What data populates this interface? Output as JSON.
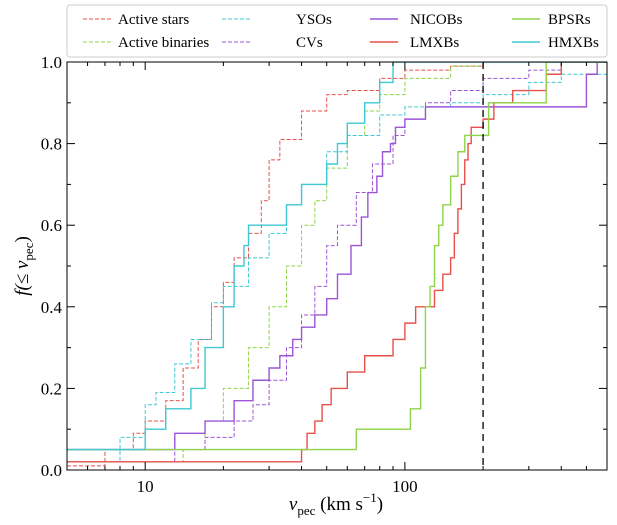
{
  "chart_data": {
    "type": "step-cdf",
    "xlabel": [
      "v",
      "pec",
      " (km s",
      "−1",
      ")"
    ],
    "ylabel": [
      "f(≤ ",
      "v",
      "pec",
      ")"
    ],
    "xscale": "log",
    "xlim": [
      5,
      600
    ],
    "xticks": [
      10,
      100
    ],
    "ylim": [
      0,
      1
    ],
    "yticks": [
      0.0,
      0.2,
      0.4,
      0.6,
      0.8,
      1.0
    ],
    "ytick_labels": [
      "0.0",
      "0.2",
      "0.4",
      "0.6",
      "0.8",
      "1.0"
    ],
    "vline": 200,
    "legend": "top",
    "series": [
      {
        "name": "Active stars",
        "color": "#e8504a",
        "linestyle": "dashed",
        "x": [
          5,
          7,
          9,
          10,
          12,
          14,
          16,
          18,
          20,
          22,
          25,
          28,
          30,
          33,
          40,
          50,
          60,
          80,
          100,
          150,
          200
        ],
        "values": [
          0.01,
          0.05,
          0.09,
          0.12,
          0.17,
          0.25,
          0.32,
          0.4,
          0.46,
          0.52,
          0.58,
          0.66,
          0.76,
          0.81,
          0.88,
          0.92,
          0.93,
          0.96,
          0.98,
          0.99,
          1.0
        ]
      },
      {
        "name": "Active binaries",
        "color": "#8ed44a",
        "linestyle": "dashed",
        "x": [
          12,
          14,
          17,
          20,
          25,
          30,
          35,
          40,
          45,
          50,
          60,
          70,
          80,
          100,
          150,
          200
        ],
        "values": [
          0.02,
          0.05,
          0.12,
          0.2,
          0.3,
          0.4,
          0.5,
          0.6,
          0.66,
          0.74,
          0.82,
          0.88,
          0.92,
          0.96,
          0.99,
          1.0
        ]
      },
      {
        "name": "YSOs",
        "color": "#3fc8d4",
        "linestyle": "dashed",
        "x": [
          5,
          8,
          10,
          11,
          13,
          15,
          18,
          20,
          25,
          30,
          35,
          40,
          50,
          60,
          80,
          100,
          150,
          200,
          300,
          400,
          600
        ],
        "values": [
          0.02,
          0.08,
          0.16,
          0.19,
          0.26,
          0.32,
          0.41,
          0.45,
          0.52,
          0.58,
          0.65,
          0.7,
          0.78,
          0.82,
          0.87,
          0.89,
          0.9,
          0.92,
          0.95,
          0.97,
          0.99
        ]
      },
      {
        "name": "CVs",
        "color": "#9a55d6",
        "linestyle": "dashed",
        "x": [
          9,
          13,
          17,
          22,
          26,
          30,
          35,
          40,
          45,
          50,
          55,
          65,
          75,
          90,
          100,
          120,
          150,
          200,
          300,
          400
        ],
        "values": [
          0.02,
          0.05,
          0.08,
          0.12,
          0.16,
          0.22,
          0.3,
          0.38,
          0.45,
          0.55,
          0.6,
          0.68,
          0.75,
          0.82,
          0.86,
          0.9,
          0.93,
          0.96,
          0.98,
          1.0
        ]
      },
      {
        "name": "NICOBs",
        "color": "#9a55d6",
        "linestyle": "solid",
        "x": [
          12,
          13,
          17,
          22,
          26,
          30,
          33,
          37,
          40,
          45,
          50,
          55,
          62,
          68,
          72,
          78,
          82,
          88,
          92,
          100,
          120,
          300,
          500,
          550
        ],
        "values": [
          0.05,
          0.09,
          0.12,
          0.17,
          0.22,
          0.25,
          0.28,
          0.32,
          0.35,
          0.38,
          0.42,
          0.48,
          0.55,
          0.62,
          0.68,
          0.72,
          0.78,
          0.8,
          0.84,
          0.86,
          0.89,
          0.89,
          0.97,
          1.0
        ]
      },
      {
        "name": "LMXBs",
        "color": "#e8504a",
        "linestyle": "solid",
        "x": [
          37,
          40,
          42,
          45,
          48,
          52,
          60,
          70,
          90,
          100,
          110,
          130,
          140,
          150,
          155,
          160,
          165,
          170,
          175,
          180,
          200,
          220,
          260,
          350,
          400
        ],
        "values": [
          0.02,
          0.05,
          0.09,
          0.12,
          0.16,
          0.2,
          0.24,
          0.28,
          0.32,
          0.36,
          0.4,
          0.44,
          0.48,
          0.52,
          0.58,
          0.64,
          0.7,
          0.76,
          0.8,
          0.84,
          0.86,
          0.9,
          0.93,
          0.97,
          1.0
        ]
      },
      {
        "name": "BPSRs",
        "color": "#8ed44a",
        "linestyle": "solid",
        "x": [
          25,
          62,
          65,
          100,
          105,
          115,
          120,
          125,
          130,
          135,
          140,
          150,
          160,
          170,
          200,
          210,
          300,
          350
        ],
        "values": [
          0.05,
          0.05,
          0.1,
          0.1,
          0.15,
          0.25,
          0.4,
          0.45,
          0.55,
          0.6,
          0.65,
          0.72,
          0.78,
          0.82,
          0.82,
          0.9,
          0.9,
          1.0
        ]
      },
      {
        "name": "HMXBs",
        "color": "#3fc8d4",
        "linestyle": "solid",
        "x": [
          9,
          10,
          12,
          15,
          17,
          20,
          22,
          24,
          25,
          30,
          35,
          40,
          50,
          55,
          60,
          70,
          80,
          90
        ],
        "values": [
          0.05,
          0.1,
          0.15,
          0.2,
          0.3,
          0.4,
          0.5,
          0.55,
          0.6,
          0.6,
          0.65,
          0.7,
          0.75,
          0.8,
          0.85,
          0.9,
          0.95,
          1.0
        ]
      }
    ]
  }
}
